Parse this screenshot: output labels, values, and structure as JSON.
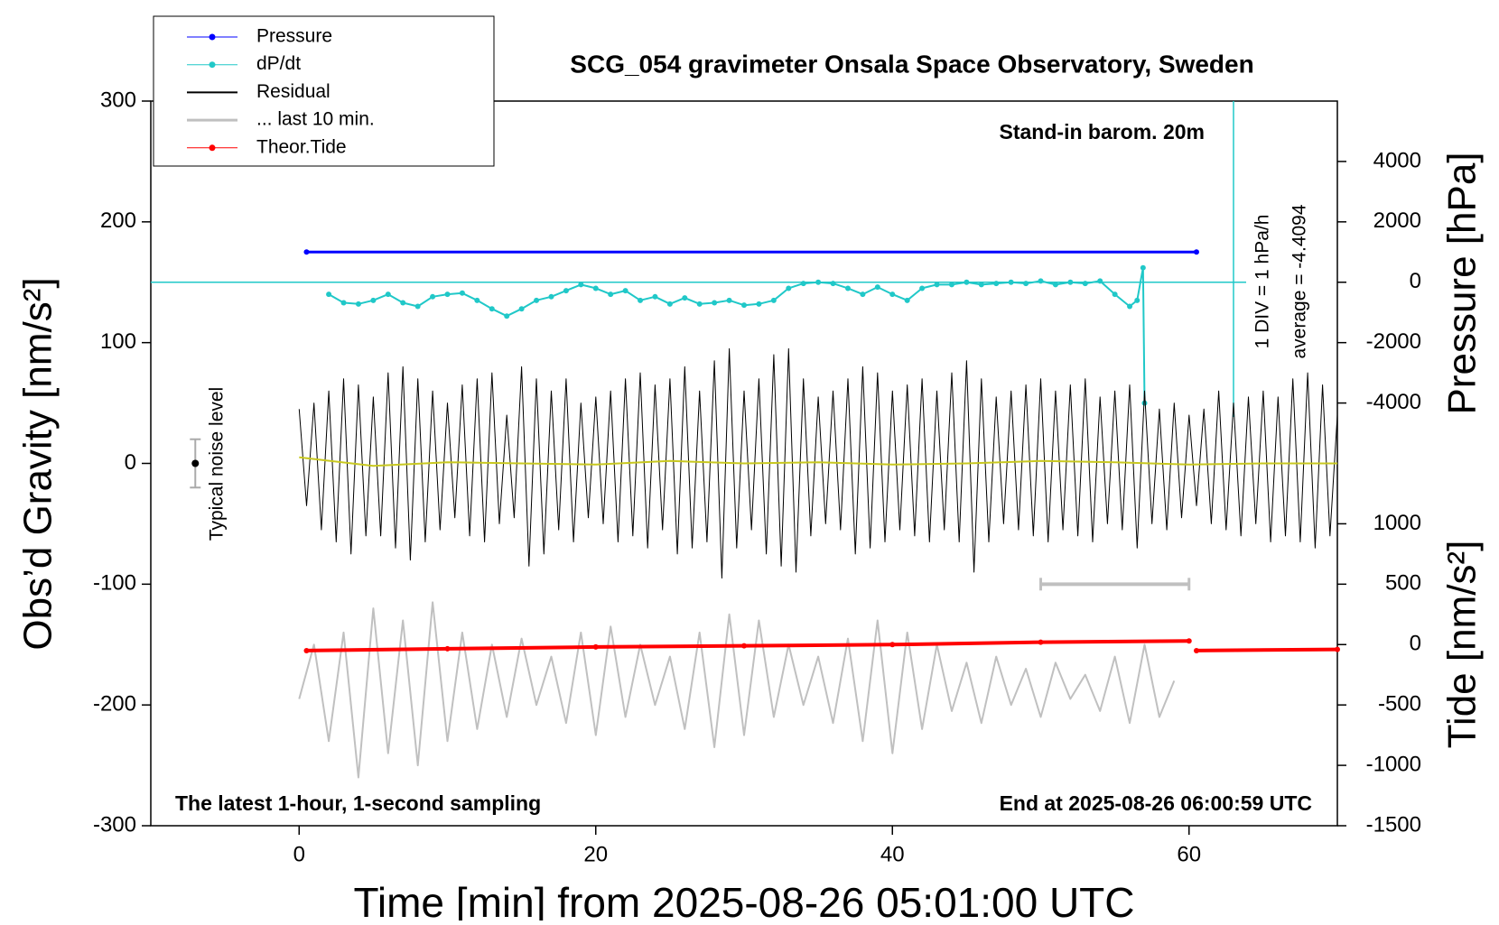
{
  "chart_data": {
    "type": "line",
    "title": "SCG_054 gravimeter Onsala Space Observatory, Sweden",
    "xlabel": "Time [min] from 2025-08-26 05:01:00 UTC",
    "ylabel": "Obs’d Gravity [nm/s²]",
    "y2label": "Pressure [hPa]",
    "y3label": "Tide [nm/s²]",
    "annotations": {
      "barometer": "Stand-in barom. 20m",
      "div": "1 DIV = 1 hPa/h",
      "average": "average = -4.4094",
      "noise": "Typical noise level",
      "sampling": "The latest 1-hour, 1-second sampling",
      "end": "End at 2025-08-26 06:00:59 UTC"
    },
    "xlim": [
      -10,
      70
    ],
    "xticks": [
      0,
      20,
      40,
      60
    ],
    "ylim": [
      -300,
      300
    ],
    "yticks": [
      -300,
      -200,
      -100,
      0,
      100,
      200,
      300
    ],
    "y2lim": [
      -18000,
      6000
    ],
    "y2ticks": [
      -4000,
      -2000,
      0,
      2000,
      4000
    ],
    "y3lim": [
      -1500,
      4500
    ],
    "y3ticks": [
      -1500,
      -1000,
      -500,
      0,
      500,
      1000
    ],
    "noise_level": {
      "x": -7,
      "value": 0,
      "error": 20
    },
    "last10_marker": {
      "x": [
        50,
        60
      ],
      "y": -100
    },
    "series": [
      {
        "name": "Pressure",
        "color": "#0000ff",
        "axis": "y2",
        "marker": true,
        "width": 3,
        "x": [
          0.5,
          60.5
        ],
        "values": [
          1000,
          1000
        ]
      },
      {
        "name": "dP/dt",
        "color": "#20c8c8",
        "axis": "y2",
        "marker": true,
        "width": 2,
        "x": [
          2,
          3,
          4,
          5,
          6,
          7,
          8,
          9,
          10,
          11,
          12,
          13,
          14,
          15,
          16,
          17,
          18,
          19,
          20,
          21,
          22,
          23,
          24,
          25,
          26,
          27,
          28,
          29,
          30,
          31,
          32,
          33,
          34,
          35,
          36,
          37,
          38,
          39,
          40,
          41,
          42,
          43,
          44,
          45,
          46,
          47,
          48,
          49,
          50,
          51,
          52,
          53,
          54,
          55,
          56,
          56.5,
          56.9,
          57
        ],
        "values": [
          -400,
          -680,
          -720,
          -600,
          -400,
          -680,
          -800,
          -480,
          -400,
          -360,
          -600,
          -880,
          -1120,
          -880,
          -600,
          -480,
          -280,
          -80,
          -200,
          -400,
          -280,
          -600,
          -480,
          -720,
          -520,
          -720,
          -680,
          -600,
          -760,
          -720,
          -600,
          -200,
          -40,
          0,
          -40,
          -200,
          -400,
          -160,
          -400,
          -600,
          -200,
          -80,
          -80,
          0,
          -80,
          -40,
          0,
          -40,
          40,
          -80,
          0,
          -40,
          40,
          -400,
          -800,
          -600,
          480,
          -4000
        ]
      },
      {
        "name": "Residual",
        "color": "#000000",
        "width": 1,
        "x": [
          0,
          0.5,
          1,
          1.5,
          2,
          2.5,
          3,
          3.5,
          4,
          4.5,
          5,
          5.5,
          6,
          6.5,
          7,
          7.5,
          8,
          8.5,
          9,
          9.5,
          10,
          10.5,
          11,
          11.5,
          12,
          12.5,
          13,
          13.5,
          14,
          14.5,
          15,
          15.5,
          16,
          16.5,
          17,
          17.5,
          18,
          18.5,
          19,
          19.5,
          20,
          20.5,
          21,
          21.5,
          22,
          22.5,
          23,
          23.5,
          24,
          24.5,
          25,
          25.5,
          26,
          26.5,
          27,
          27.5,
          28,
          28.5,
          29,
          29.5,
          30,
          30.5,
          31,
          31.5,
          32,
          32.5,
          33,
          33.5,
          34,
          34.5,
          35,
          35.5,
          36,
          36.5,
          37,
          37.5,
          38,
          38.5,
          39,
          39.5,
          40,
          40.5,
          41,
          41.5,
          42,
          42.5,
          43,
          43.5,
          44,
          44.5,
          45,
          45.5,
          46,
          46.5,
          47,
          47.5,
          48,
          48.5,
          49,
          49.5,
          50,
          50.5,
          51,
          51.5,
          52,
          52.5,
          53,
          53.5,
          54,
          54.5,
          55,
          55.5,
          56,
          56.5,
          57,
          57.5,
          58,
          58.5,
          59,
          59.5,
          60,
          60.5,
          61,
          61.5,
          62,
          62.5,
          63,
          63.5,
          64,
          64.5,
          65,
          65.5,
          66,
          66.5,
          67,
          67.5,
          68,
          68.5,
          69,
          69.5,
          70
        ],
        "values": [
          45,
          -35,
          50,
          -55,
          60,
          -65,
          70,
          -75,
          65,
          -60,
          55,
          -60,
          75,
          -70,
          80,
          -80,
          70,
          -65,
          60,
          -55,
          50,
          -45,
          65,
          -60,
          70,
          -65,
          75,
          -50,
          40,
          -45,
          80,
          -85,
          70,
          -75,
          60,
          -55,
          70,
          -65,
          50,
          -45,
          55,
          -50,
          60,
          -65,
          70,
          -60,
          75,
          -70,
          65,
          -55,
          70,
          -75,
          80,
          -70,
          60,
          -65,
          85,
          -95,
          95,
          -70,
          60,
          -55,
          70,
          -75,
          90,
          -85,
          95,
          -90,
          70,
          -60,
          55,
          -50,
          60,
          -55,
          70,
          -75,
          80,
          -70,
          75,
          -65,
          60,
          -55,
          65,
          -60,
          70,
          -65,
          60,
          -55,
          75,
          -65,
          85,
          -90,
          70,
          -65,
          55,
          -50,
          60,
          -55,
          65,
          -60,
          70,
          -65,
          60,
          -55,
          65,
          -60,
          70,
          -65,
          55,
          -50,
          60,
          -55,
          65,
          -70,
          60,
          -50,
          45,
          -55,
          50,
          -45,
          40,
          -35,
          45,
          -50,
          60,
          -55,
          50,
          -60,
          55,
          -50,
          60,
          -65,
          55,
          -60,
          70,
          -65,
          75,
          -70,
          65,
          -60,
          40
        ]
      },
      {
        "name": "... last 10 min.",
        "color": "#c0c0c0",
        "width": 2,
        "x": [
          0,
          1,
          2,
          3,
          4,
          5,
          6,
          7,
          8,
          9,
          10,
          11,
          12,
          13,
          14,
          15,
          16,
          17,
          18,
          19,
          20,
          21,
          22,
          23,
          24,
          25,
          26,
          27,
          28,
          29,
          30,
          31,
          32,
          33,
          34,
          35,
          36,
          37,
          38,
          39,
          40,
          41,
          42,
          43,
          44,
          45,
          46,
          47,
          48,
          49,
          50,
          51,
          52,
          53,
          54,
          55,
          56,
          57,
          58,
          59
        ],
        "values": [
          -195,
          -150,
          -230,
          -140,
          -260,
          -120,
          -240,
          -130,
          -250,
          -115,
          -230,
          -140,
          -220,
          -150,
          -210,
          -145,
          -200,
          -160,
          -215,
          -140,
          -225,
          -135,
          -210,
          -150,
          -200,
          -160,
          -220,
          -140,
          -235,
          -125,
          -225,
          -130,
          -210,
          -150,
          -200,
          -160,
          -215,
          -145,
          -230,
          -130,
          -240,
          -140,
          -220,
          -150,
          -205,
          -165,
          -215,
          -160,
          -200,
          -170,
          -210,
          -165,
          -195,
          -175,
          -205,
          -160,
          -215,
          -150,
          -210,
          -180
        ]
      },
      {
        "name": "Theor.Tide",
        "color": "#ff0000",
        "axis": "y3",
        "marker": true,
        "width": 4,
        "x": [
          0.5,
          10,
          20,
          30,
          40,
          50,
          60,
          60.3,
          60.5,
          70
        ],
        "values": [
          -50,
          -35,
          -20,
          -10,
          0,
          20,
          30,
          null,
          -50,
          -40
        ]
      },
      {
        "color": "#c8c820",
        "width": 2,
        "x": [
          0,
          5,
          10,
          15,
          20,
          25,
          30,
          35,
          40,
          45,
          50,
          55,
          60,
          65,
          70
        ],
        "values": [
          5,
          -2,
          1,
          0,
          -1,
          2,
          0,
          1,
          -1,
          0,
          2,
          1,
          -1,
          0,
          0
        ]
      }
    ]
  }
}
